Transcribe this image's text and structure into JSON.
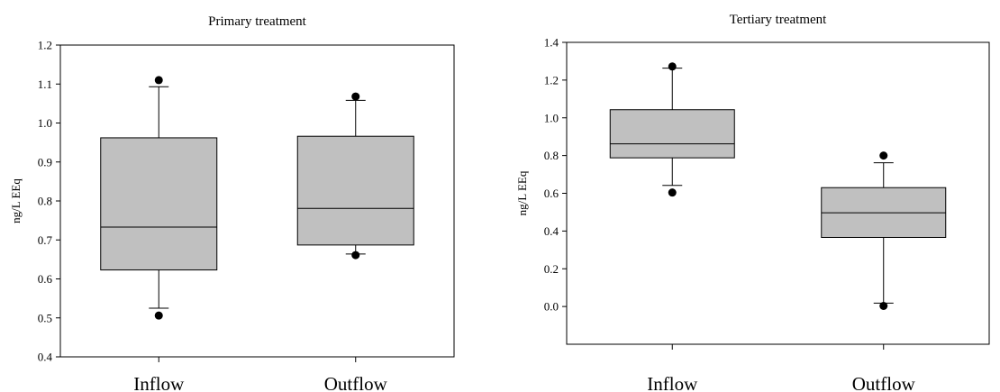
{
  "chart_data": [
    {
      "type": "box",
      "title": "Primary treatment",
      "xlabel": "",
      "ylabel": "ng/L EEq",
      "categories": [
        "Inflow",
        "Outflow"
      ],
      "ylim": [
        0.4,
        1.2
      ],
      "yticks": [
        0.4,
        0.5,
        0.6,
        0.7,
        0.8,
        0.9,
        1.0,
        1.1,
        1.2
      ],
      "ytick_labels": [
        "0.4",
        "0.5",
        "0.6",
        "0.7",
        "0.8",
        "0.9",
        "1.0",
        "1.1",
        "1.2"
      ],
      "grid": false,
      "boxes": [
        {
          "category": "Inflow",
          "whisker_low": 0.525,
          "q1": 0.623,
          "median": 0.733,
          "q3": 0.962,
          "whisker_high": 1.093,
          "outliers": [
            0.506,
            1.11
          ]
        },
        {
          "category": "Outflow",
          "whisker_low": 0.664,
          "q1": 0.687,
          "median": 0.781,
          "q3": 0.966,
          "whisker_high": 1.058,
          "outliers": [
            0.661,
            1.068
          ]
        }
      ],
      "colors": {
        "box_fill": "#c0c0c0",
        "stroke": "#000000"
      }
    },
    {
      "type": "box",
      "title": "Tertiary treatment",
      "xlabel": "",
      "ylabel": "ng/L EEq",
      "categories": [
        "Inflow",
        "Outflow"
      ],
      "ylim": [
        -0.2,
        1.4
      ],
      "yticks": [
        0.0,
        0.2,
        0.4,
        0.6,
        0.8,
        1.0,
        1.2,
        1.4
      ],
      "ytick_labels": [
        "0.0",
        "0.2",
        "0.4",
        "0.6",
        "0.8",
        "1.0",
        "1.2",
        "1.4"
      ],
      "grid": false,
      "boxes": [
        {
          "category": "Inflow",
          "whisker_low": 0.642,
          "q1": 0.788,
          "median": 0.862,
          "q3": 1.043,
          "whisker_high": 1.263,
          "outliers": [
            0.604,
            1.272
          ]
        },
        {
          "category": "Outflow",
          "whisker_low": 0.018,
          "q1": 0.366,
          "median": 0.497,
          "q3": 0.63,
          "whisker_high": 0.762,
          "outliers": [
            0.003,
            0.8
          ]
        }
      ],
      "colors": {
        "box_fill": "#c0c0c0",
        "stroke": "#000000"
      }
    }
  ]
}
